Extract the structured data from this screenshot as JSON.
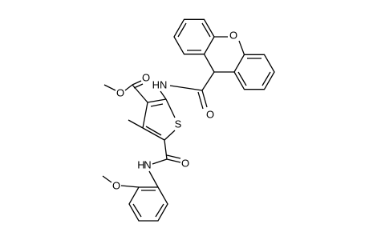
{
  "atoms": [
    {
      "label": "O"
    },
    {
      "label": "HN"
    },
    {
      "label": "O"
    },
    {
      "label": "O"
    },
    {
      "label": "O"
    },
    {
      "label": "S"
    },
    {
      "label": "O"
    },
    {
      "label": "N"
    },
    {
      "label": "H"
    },
    {
      "label": "O"
    }
  ]
}
